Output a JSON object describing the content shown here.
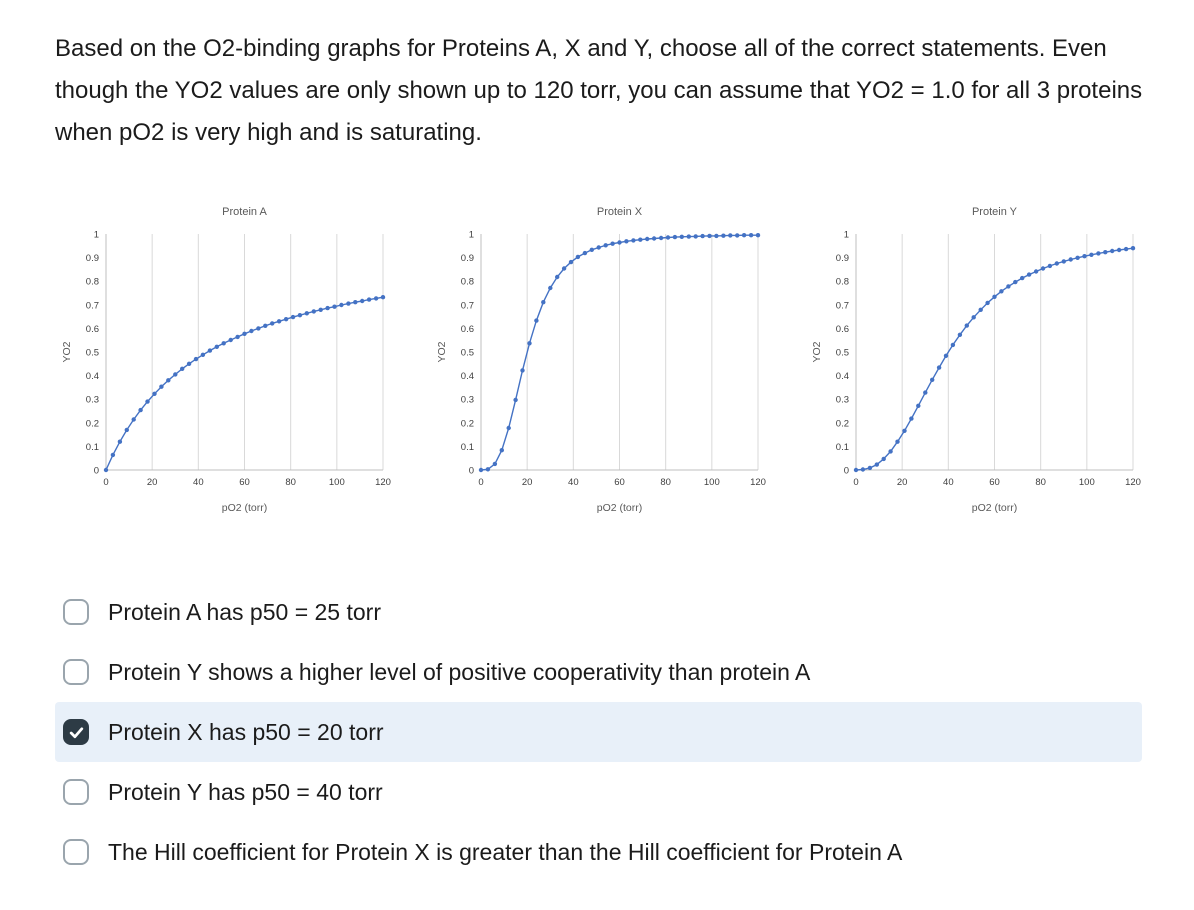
{
  "question": {
    "text": "Based on the O2-binding graphs for Proteins A, X and Y, choose all of the correct statements. Even though the YO2 values are only shown up to 120 torr, you can assume that YO2 = 1.0 for all 3 proteins when pO2 is very high and is saturating."
  },
  "colors": {
    "series_blue": "#4472C4",
    "gridline": "#d9d9d9",
    "axis": "#bfbfbf",
    "chart_text": "#595959",
    "tick_text": "#404040",
    "selected_row_bg": "#e8f0f9",
    "checkbox_checked": "#2d3b45",
    "checkbox_border": "#9aa5ad"
  },
  "chart_data": [
    {
      "type": "scatter",
      "title": "Protein A",
      "xlabel": "pO2 (torr)",
      "ylabel": "YO2",
      "xlim": [
        0,
        120
      ],
      "ylim": [
        0,
        1
      ],
      "xticks": [
        0,
        20,
        40,
        60,
        80,
        100,
        120
      ],
      "yticks": [
        0,
        0.1,
        0.2,
        0.3,
        0.4,
        0.5,
        0.6,
        0.7,
        0.8,
        0.9,
        1
      ],
      "grid": "vertical",
      "legend": "none",
      "color": "#4472C4",
      "x": [
        0,
        3,
        6,
        9,
        12,
        15,
        18,
        21,
        24,
        27,
        30,
        33,
        36,
        39,
        42,
        45,
        48,
        51,
        54,
        57,
        60,
        63,
        66,
        69,
        72,
        75,
        78,
        81,
        84,
        87,
        90,
        93,
        96,
        99,
        102,
        105,
        108,
        111,
        114,
        117,
        120
      ],
      "y": [
        0,
        0.064,
        0.12,
        0.17,
        0.214,
        0.254,
        0.29,
        0.323,
        0.353,
        0.38,
        0.405,
        0.429,
        0.45,
        0.47,
        0.488,
        0.506,
        0.522,
        0.537,
        0.551,
        0.564,
        0.577,
        0.589,
        0.6,
        0.611,
        0.621,
        0.63,
        0.639,
        0.648,
        0.656,
        0.664,
        0.672,
        0.679,
        0.686,
        0.692,
        0.699,
        0.705,
        0.711,
        0.716,
        0.722,
        0.727,
        0.732
      ]
    },
    {
      "type": "scatter",
      "title": "Protein X",
      "xlabel": "pO2 (torr)",
      "ylabel": "YO2",
      "xlim": [
        0,
        120
      ],
      "ylim": [
        0,
        1
      ],
      "xticks": [
        0,
        20,
        40,
        60,
        80,
        100,
        120
      ],
      "yticks": [
        0,
        0.1,
        0.2,
        0.3,
        0.4,
        0.5,
        0.6,
        0.7,
        0.8,
        0.9,
        1
      ],
      "grid": "vertical",
      "legend": "none",
      "color": "#4472C4",
      "x": [
        0,
        3,
        6,
        9,
        12,
        15,
        18,
        21,
        24,
        27,
        30,
        33,
        36,
        39,
        42,
        45,
        48,
        51,
        54,
        57,
        60,
        63,
        66,
        69,
        72,
        75,
        78,
        81,
        84,
        87,
        90,
        93,
        96,
        99,
        102,
        105,
        108,
        111,
        114,
        117,
        120
      ],
      "y": [
        0,
        0.003,
        0.026,
        0.084,
        0.178,
        0.297,
        0.422,
        0.537,
        0.633,
        0.711,
        0.771,
        0.818,
        0.854,
        0.881,
        0.903,
        0.919,
        0.933,
        0.943,
        0.952,
        0.959,
        0.964,
        0.969,
        0.973,
        0.976,
        0.979,
        0.981,
        0.983,
        0.985,
        0.987,
        0.988,
        0.989,
        0.99,
        0.991,
        0.992,
        0.992,
        0.993,
        0.994,
        0.994,
        0.995,
        0.995,
        0.995
      ]
    },
    {
      "type": "scatter",
      "title": "Protein Y",
      "xlabel": "pO2 (torr)",
      "ylabel": "YO2",
      "xlim": [
        0,
        120
      ],
      "ylim": [
        0,
        1
      ],
      "xticks": [
        0,
        20,
        40,
        60,
        80,
        100,
        120
      ],
      "yticks": [
        0,
        0.1,
        0.2,
        0.3,
        0.4,
        0.5,
        0.6,
        0.7,
        0.8,
        0.9,
        1
      ],
      "grid": "vertical",
      "legend": "none",
      "color": "#4472C4",
      "x": [
        0,
        3,
        6,
        9,
        12,
        15,
        18,
        21,
        24,
        27,
        30,
        33,
        36,
        39,
        42,
        45,
        48,
        51,
        54,
        57,
        60,
        63,
        66,
        69,
        72,
        75,
        78,
        81,
        84,
        87,
        90,
        93,
        96,
        99,
        102,
        105,
        108,
        111,
        114,
        117,
        120
      ],
      "y": [
        0,
        0.002,
        0.009,
        0.023,
        0.047,
        0.079,
        0.12,
        0.166,
        0.218,
        0.272,
        0.328,
        0.382,
        0.434,
        0.484,
        0.53,
        0.573,
        0.612,
        0.647,
        0.679,
        0.708,
        0.734,
        0.757,
        0.778,
        0.796,
        0.813,
        0.828,
        0.841,
        0.854,
        0.865,
        0.875,
        0.884,
        0.892,
        0.899,
        0.906,
        0.912,
        0.918,
        0.923,
        0.928,
        0.932,
        0.936,
        0.94
      ]
    }
  ],
  "options": [
    {
      "label": "Protein A has p50 = 25 torr",
      "checked": false
    },
    {
      "label": "Protein Y shows a higher level of positive cooperativity than protein A",
      "checked": false
    },
    {
      "label": "Protein X has p50 = 20 torr",
      "checked": true
    },
    {
      "label": "Protein Y has p50 = 40 torr",
      "checked": false
    },
    {
      "label": "The Hill coefficient for Protein X is greater than the Hill coefficient for Protein A",
      "checked": false
    }
  ]
}
